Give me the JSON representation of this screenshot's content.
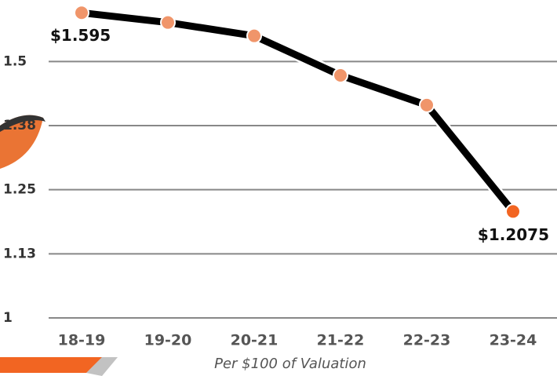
{
  "chart_data": {
    "type": "line",
    "x_label": "Per $100 of Valuation",
    "categories": [
      "18-19",
      "19-20",
      "20-21",
      "21-22",
      "22-23",
      "23-24"
    ],
    "series": [
      {
        "color": "#000000",
        "values": [
          1.595,
          1.576,
          1.55,
          1.473,
          1.415,
          1.2075
        ],
        "value_labels": [
          "$1.595",
          null,
          null,
          null,
          null,
          "$1.2075"
        ],
        "marker_colors": [
          "#f0956a",
          "#f0956a",
          "#f0956a",
          "#f0956a",
          "#f0956a",
          "#f26522"
        ]
      }
    ],
    "ylim": [
      1,
      1.6
    ],
    "yticks": [
      1,
      {
        "value": 1.125,
        "label": "1.13"
      },
      1.25,
      {
        "value": 1.375,
        "label": "1.38"
      },
      1.5
    ],
    "grid": true
  }
}
